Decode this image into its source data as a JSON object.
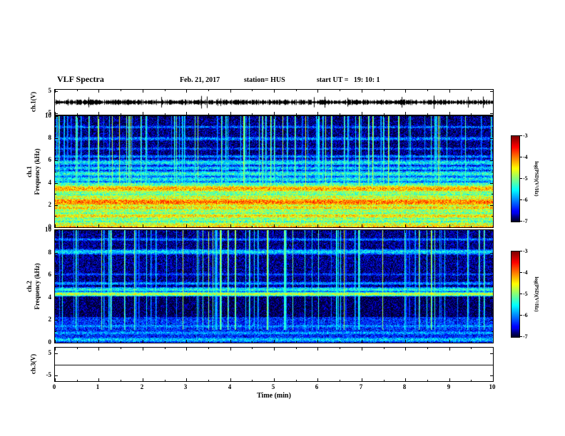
{
  "header": {
    "title": "VLF Spectra",
    "date": "Feb. 21, 2017",
    "station": "station= HUS",
    "start_ut": "start UT =   19: 10: 1"
  },
  "xaxis": {
    "label": "Time (min)",
    "range": [
      0,
      10
    ],
    "ticks": [
      0,
      1,
      2,
      3,
      4,
      5,
      6,
      7,
      8,
      9,
      10
    ],
    "minor_step": 0.5
  },
  "colorbar": {
    "label": "log(PSD)(V²/Hz)",
    "range": [
      -3,
      -7
    ],
    "ticks": [
      -3,
      -4,
      -5,
      -6,
      -7
    ]
  },
  "chart_data": [
    {
      "id": "ch1_wave",
      "type": "line",
      "ylabel": "ch.1(V)",
      "ylim": [
        -5.5,
        5.5
      ],
      "yticks": [
        5,
        -5
      ],
      "description": "dense broadband noise waveform, mean 0 V, envelope about ±2 V with intermittent spikes",
      "noise_amp": 1.6,
      "spike_rate": 0.05,
      "seed": 7
    },
    {
      "id": "ch1_spec",
      "type": "heatmap",
      "ylabel_lines": [
        "ch.1",
        "Frequency (kHz)"
      ],
      "ylim": [
        0,
        10
      ],
      "yticks": [
        0,
        2,
        4,
        6,
        8,
        10
      ],
      "yticks_minor": [
        1,
        3,
        5,
        7,
        9
      ],
      "value_range": [
        -7,
        -3
      ],
      "noise": 0.55,
      "seed": 42,
      "background": [
        [
          0,
          4.05,
          -6.15
        ],
        [
          4.05,
          6.2,
          -6.5
        ],
        [
          6.2,
          10,
          -6.85
        ]
      ],
      "bands": [
        [
          0.08,
          0.18,
          -4.2
        ],
        [
          0.3,
          0.3,
          -4.6
        ],
        [
          0.7,
          0.25,
          -4.9
        ],
        [
          1.05,
          0.3,
          -4.4
        ],
        [
          1.45,
          0.25,
          -4.8
        ],
        [
          1.8,
          0.3,
          -4.35
        ],
        [
          2.3,
          0.4,
          -3.95
        ],
        [
          2.75,
          0.3,
          -4.6
        ],
        [
          3.1,
          0.25,
          -4.9
        ],
        [
          3.5,
          0.35,
          -4.15
        ],
        [
          3.9,
          0.25,
          -5.2
        ],
        [
          4.35,
          0.3,
          -5.45
        ],
        [
          4.85,
          0.3,
          -5.35
        ],
        [
          5.35,
          0.25,
          -5.65
        ],
        [
          5.85,
          0.3,
          -5.5
        ],
        [
          6.4,
          0.2,
          -5.95
        ],
        [
          7.1,
          0.2,
          -6.2
        ],
        [
          8.0,
          0.25,
          -6.0
        ],
        [
          9.05,
          0.2,
          -6.15
        ]
      ],
      "streaks": {
        "count": 95,
        "fmin": 2.2,
        "boost_min": 0.7,
        "boost_max": 2.4
      }
    },
    {
      "id": "ch2_spec",
      "type": "heatmap",
      "ylabel_lines": [
        "ch.2",
        "Frequency (kHz)"
      ],
      "ylim": [
        0,
        10
      ],
      "yticks": [
        0,
        2,
        4,
        6,
        8,
        10
      ],
      "yticks_minor": [
        1,
        3,
        5,
        7,
        9
      ],
      "value_range": [
        -7,
        -3
      ],
      "noise": 0.5,
      "seed": 1337,
      "background": [
        [
          0,
          2.3,
          -6.35
        ],
        [
          2.3,
          4.1,
          -6.95
        ],
        [
          4.1,
          10,
          -6.8
        ]
      ],
      "bands": [
        [
          0.3,
          0.3,
          -5.7
        ],
        [
          0.9,
          0.25,
          -5.85
        ],
        [
          1.5,
          0.25,
          -5.95
        ],
        [
          2.0,
          0.2,
          -6.3
        ],
        [
          4.35,
          0.2,
          -4.7
        ],
        [
          4.75,
          0.25,
          -5.4
        ],
        [
          5.3,
          0.2,
          -5.9
        ],
        [
          6.1,
          0.2,
          -6.25
        ],
        [
          8.1,
          0.3,
          -5.6
        ],
        [
          9.2,
          0.2,
          -6.05
        ]
      ],
      "streaks": {
        "count": 80,
        "fmin": 1.2,
        "boost_min": 0.7,
        "boost_max": 2.5
      }
    },
    {
      "id": "ch3_wave",
      "type": "line",
      "ylabel": "ch.3(V)",
      "ylim": [
        -7.5,
        7.5
      ],
      "yticks": [
        5,
        -5
      ],
      "description": "flat trace at 0 V (no signal)",
      "noise_amp": 0,
      "spike_rate": 0,
      "seed": 3
    }
  ]
}
